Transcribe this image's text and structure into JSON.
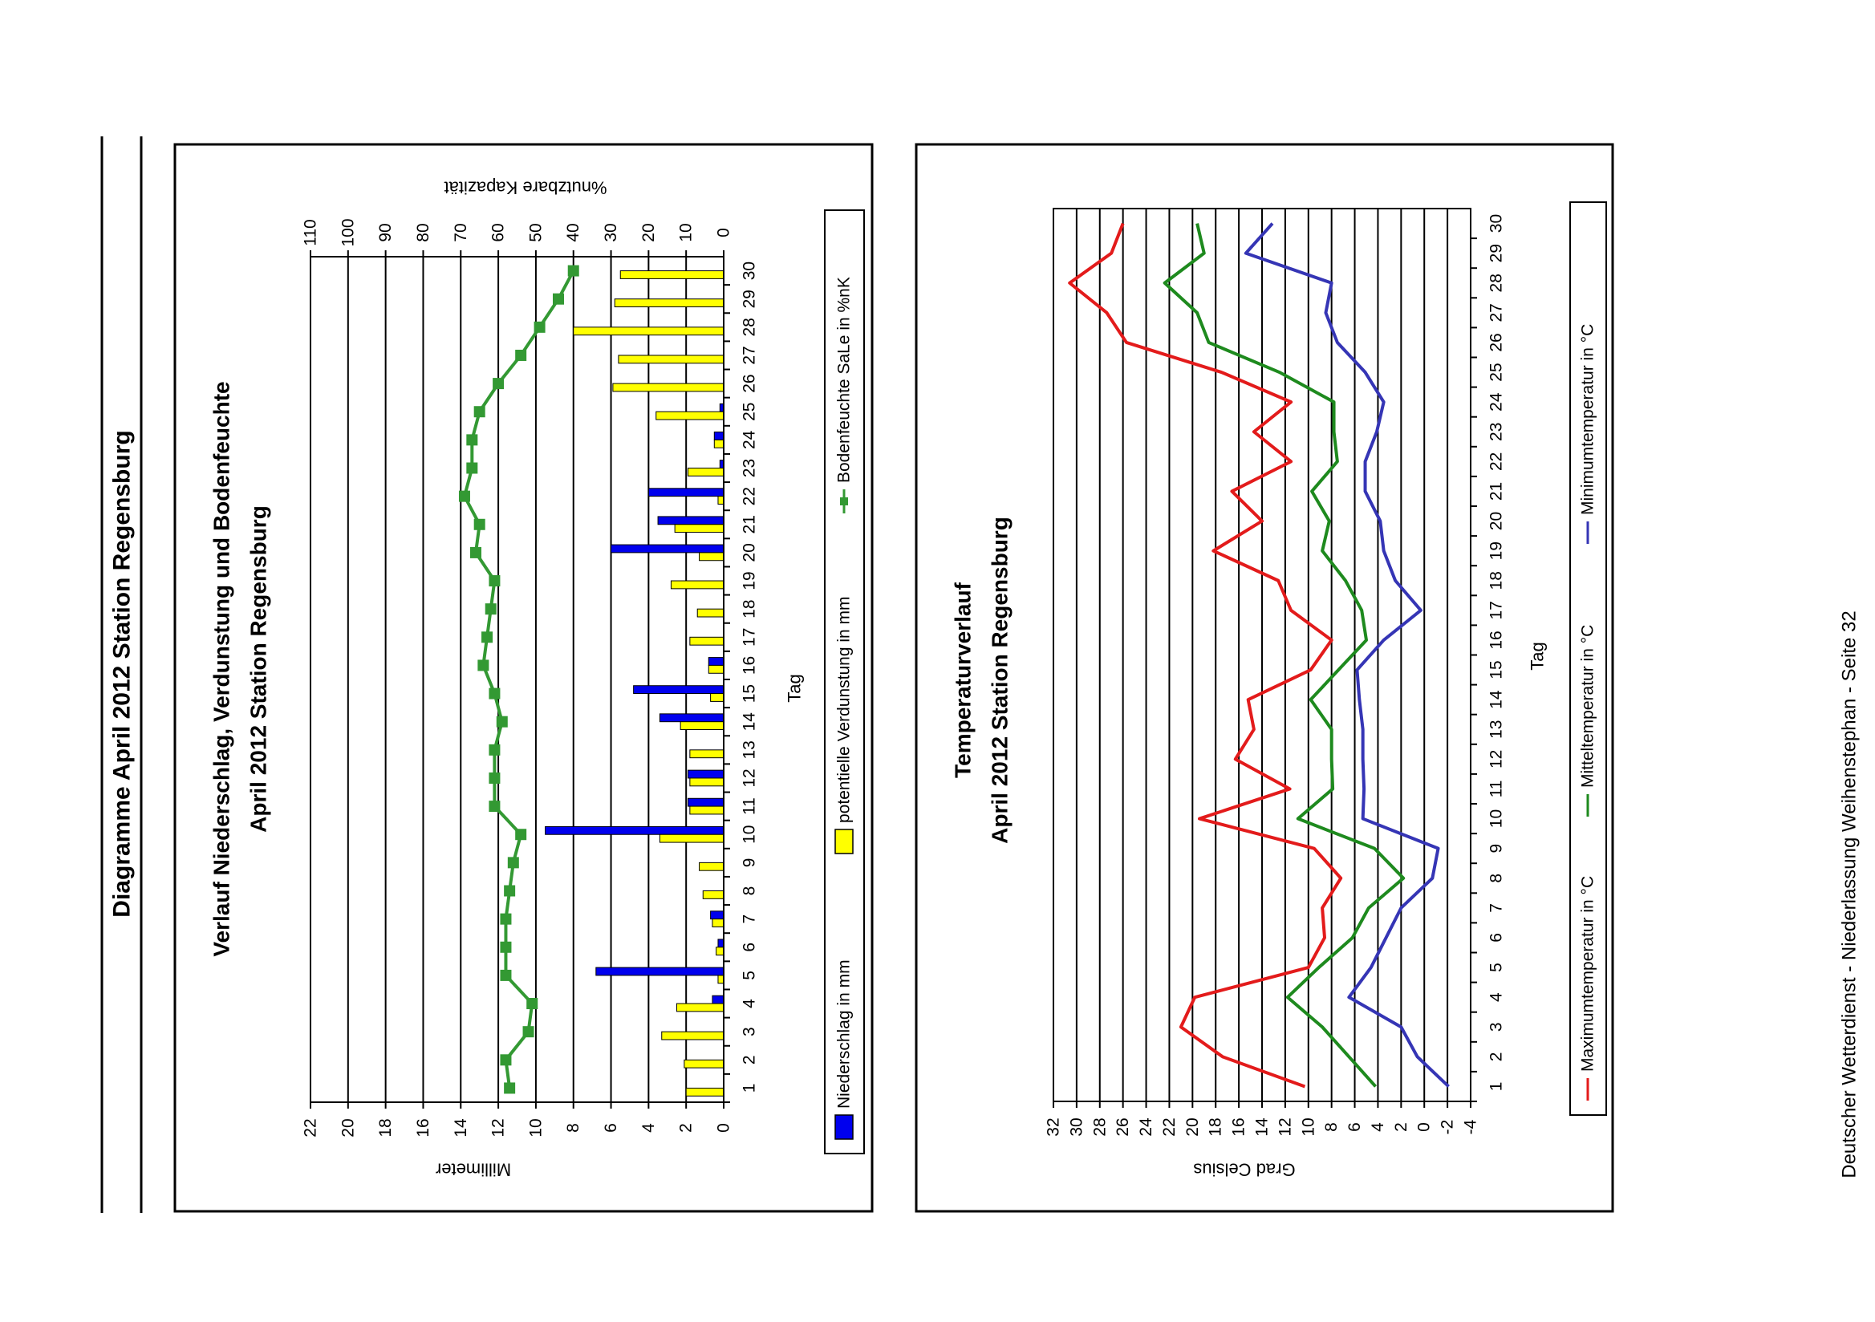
{
  "page_title": "Diagramme April 2012 Station Regensburg",
  "footer": "Deutscher Wetterdienst - Niederlassung Weihenstephan - Seite 32",
  "colors": {
    "precip": "#0000ee",
    "evap": "#ffff00",
    "soil": "#339933",
    "max": "#e31b1b",
    "mean": "#1e8a1e",
    "min": "#3535b5"
  },
  "chart_data": [
    {
      "type": "bar",
      "title_line1": "Verlauf Niederschlag, Verdunstung und Bodenfeuchte",
      "title_line2": "April 2012 Station Regensburg",
      "xlabel": "Tag",
      "ylabel": "Millimeter",
      "y2label": "%nutzbare Kapazität",
      "ylim": [
        0,
        22
      ],
      "y2lim": [
        0,
        110
      ],
      "categories": [
        "1",
        "2",
        "3",
        "4",
        "5",
        "6",
        "7",
        "8",
        "9",
        "10",
        "11",
        "12",
        "13",
        "14",
        "15",
        "16",
        "17",
        "18",
        "19",
        "20",
        "21",
        "22",
        "23",
        "24",
        "25",
        "26",
        "27",
        "28",
        "29",
        "30"
      ],
      "ticks_left": [
        "0",
        "2",
        "4",
        "6",
        "8",
        "10",
        "12",
        "14",
        "16",
        "18",
        "20",
        "22"
      ],
      "ticks_right": [
        "0",
        "10",
        "20",
        "30",
        "40",
        "50",
        "60",
        "70",
        "80",
        "90",
        "100",
        "110"
      ],
      "series": [
        {
          "name": "Niederschlag in mm",
          "kind": "bar",
          "values": [
            0,
            0,
            0,
            0.6,
            6.8,
            0.3,
            0.7,
            0,
            0,
            9.5,
            1.9,
            1.9,
            0,
            3.4,
            4.8,
            0.8,
            0,
            0,
            0,
            6.0,
            3.5,
            4.0,
            0.2,
            0.5,
            0.2,
            0,
            0,
            0,
            0,
            0
          ]
        },
        {
          "name": "potentielle Verdunstung in mm",
          "kind": "bar",
          "values": [
            2.0,
            2.1,
            3.3,
            2.5,
            0.3,
            0.4,
            0.6,
            1.1,
            1.3,
            3.4,
            1.8,
            1.8,
            1.8,
            2.3,
            0.7,
            0.8,
            1.8,
            1.4,
            2.8,
            1.3,
            2.6,
            0.3,
            1.9,
            0.5,
            3.6,
            5.9,
            5.6,
            8.0,
            5.8,
            5.5
          ]
        },
        {
          "name": "Bodenfeuchte SaLe in %nK",
          "kind": "line",
          "values": [
            57,
            58,
            52,
            51,
            58,
            58,
            58,
            57,
            56,
            54,
            61,
            61,
            61,
            59,
            61,
            64,
            63,
            62,
            61,
            66,
            65,
            69,
            67,
            67,
            65,
            60,
            54,
            49,
            44,
            40
          ]
        }
      ]
    },
    {
      "type": "line",
      "title_line1": "Temperaturverlauf",
      "title_line2": "April 2012 Station Regensburg",
      "xlabel": "Tag",
      "ylabel": "Grad Celsius",
      "ylim": [
        -4,
        32
      ],
      "categories": [
        "1",
        "2",
        "3",
        "4",
        "5",
        "6",
        "7",
        "8",
        "9",
        "10",
        "11",
        "12",
        "13",
        "14",
        "15",
        "16",
        "17",
        "18",
        "19",
        "20",
        "21",
        "22",
        "23",
        "24",
        "25",
        "26",
        "27",
        "28",
        "29",
        "30"
      ],
      "ticks": [
        "-4",
        "-2",
        "0",
        "2",
        "4",
        "6",
        "8",
        "10",
        "12",
        "14",
        "16",
        "18",
        "20",
        "22",
        "24",
        "26",
        "28",
        "30",
        "32"
      ],
      "series": [
        {
          "name": "Maximumtemperatur in °C",
          "values": [
            10.3,
            17.4,
            21.0,
            19.8,
            10.0,
            8.6,
            8.8,
            7.2,
            9.5,
            19.4,
            11.6,
            16.3,
            14.7,
            15.2,
            9.8,
            8.0,
            11.5,
            12.6,
            18.2,
            14.0,
            16.6,
            11.5,
            14.7,
            11.5,
            17.5,
            25.7,
            27.4,
            30.6,
            27.0,
            26.0
          ]
        },
        {
          "name": "Mitteltemperatur in °C",
          "values": [
            4.2,
            6.5,
            8.8,
            11.8,
            9.1,
            6.2,
            4.8,
            1.8,
            4.3,
            10.9,
            7.9,
            8.0,
            8.0,
            9.8,
            7.4,
            5.0,
            5.4,
            6.8,
            8.8,
            8.2,
            9.7,
            7.5,
            7.8,
            7.8,
            12.5,
            18.6,
            19.6,
            22.4,
            19.0,
            19.6
          ]
        },
        {
          "name": "Minimumtemperatur in °C",
          "values": [
            -2.1,
            0.6,
            2.0,
            6.5,
            4.6,
            3.3,
            2.0,
            -0.7,
            -1.2,
            5.3,
            5.2,
            5.3,
            5.3,
            5.6,
            5.8,
            3.5,
            0.3,
            2.5,
            3.5,
            3.8,
            5.1,
            5.1,
            4.1,
            3.5,
            5.1,
            7.5,
            8.5,
            8.0,
            15.4,
            13.1
          ]
        }
      ]
    }
  ]
}
